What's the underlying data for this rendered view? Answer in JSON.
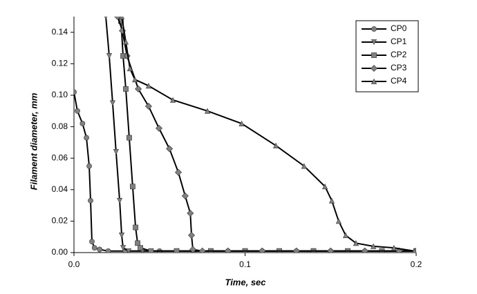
{
  "chart_data": {
    "type": "line",
    "x_label": "Time, sec",
    "y_label": "Filament diameter, mm",
    "xlim": [
      0,
      0.2
    ],
    "ylim": [
      0,
      0.15
    ],
    "xticks": [
      {
        "value": 0,
        "label": "0.0"
      },
      0.1,
      0.2
    ],
    "yticks": [
      {
        "value": 0,
        "label": "0.00"
      },
      0.02,
      0.04,
      0.06,
      0.08,
      {
        "value": 0.1,
        "label": "0.10"
      },
      0.12,
      0.14
    ],
    "legend": "upper right",
    "series": [
      {
        "name": "CP0",
        "color": "#000000",
        "marker_color": "#808080",
        "marker": "circle",
        "x": [
          0,
          0.002,
          0.005,
          0.0073,
          0.0089,
          0.0097,
          0.0105,
          0.012,
          0.015,
          0.02,
          0.03,
          0.05,
          0.07,
          0.09,
          0.11,
          0.13,
          0.15,
          0.17,
          0.19,
          0.2
        ],
        "values": [
          0.102,
          0.09,
          0.082,
          0.073,
          0.055,
          0.033,
          0.007,
          0.003,
          0.002,
          0.001,
          0.001,
          0.001,
          0.001,
          0.001,
          0.001,
          0.001,
          0.001,
          0.001,
          0.001,
          0.001
        ]
      },
      {
        "name": "CP1",
        "color": "#000000",
        "marker_color": "#808080",
        "marker": "triangle-down",
        "x": [
          0.0186,
          0.0206,
          0.0226,
          0.0246,
          0.0267,
          0.0279,
          0.0287,
          0.032,
          0.04,
          0.06,
          0.08,
          0.1,
          0.12,
          0.14,
          0.16,
          0.18,
          0.2
        ],
        "values": [
          0.15,
          0.125,
          0.095,
          0.064,
          0.033,
          0.011,
          0.003,
          0.001,
          0.001,
          0.001,
          0.001,
          0.001,
          0.001,
          0.001,
          0.001,
          0.001,
          0.001
        ]
      },
      {
        "name": "CP2",
        "color": "#000000",
        "marker_color": "#808080",
        "marker": "square",
        "x": [
          0.0275,
          0.0287,
          0.0303,
          0.0323,
          0.0343,
          0.036,
          0.0372,
          0.0388,
          0.045,
          0.06,
          0.08,
          0.1,
          0.12,
          0.14,
          0.16,
          0.18,
          0.2
        ],
        "values": [
          0.147,
          0.125,
          0.104,
          0.073,
          0.042,
          0.016,
          0.006,
          0.003,
          0.001,
          0.001,
          0.001,
          0.001,
          0.001,
          0.001,
          0.001,
          0.001,
          0.001
        ]
      },
      {
        "name": "CP3",
        "color": "#000000",
        "marker_color": "#808080",
        "marker": "diamond",
        "x": [
          0.0255,
          0.0283,
          0.031,
          0.0376,
          0.0436,
          0.0497,
          0.0558,
          0.061,
          0.065,
          0.068,
          0.0687,
          0.0695,
          0.075,
          0.09,
          0.11,
          0.13,
          0.15,
          0.17,
          0.19,
          0.2
        ],
        "values": [
          0.15,
          0.141,
          0.125,
          0.104,
          0.093,
          0.079,
          0.066,
          0.051,
          0.036,
          0.025,
          0.011,
          0.002,
          0.001,
          0.001,
          0.001,
          0.001,
          0.001,
          0.001,
          0.001,
          0.001
        ]
      },
      {
        "name": "CP4",
        "color": "#000000",
        "marker_color": "#808080",
        "marker": "triangle-up",
        "x": [
          0.0279,
          0.0303,
          0.0327,
          0.0356,
          0.0436,
          0.0578,
          0.078,
          0.098,
          0.118,
          0.1345,
          0.1467,
          0.1507,
          0.1547,
          0.1588,
          0.1648,
          0.175,
          0.187,
          0.199
        ],
        "values": [
          0.15,
          0.134,
          0.117,
          0.11,
          0.106,
          0.097,
          0.09,
          0.082,
          0.068,
          0.055,
          0.042,
          0.033,
          0.02,
          0.011,
          0.006,
          0.004,
          0.003,
          0.001
        ]
      }
    ]
  }
}
